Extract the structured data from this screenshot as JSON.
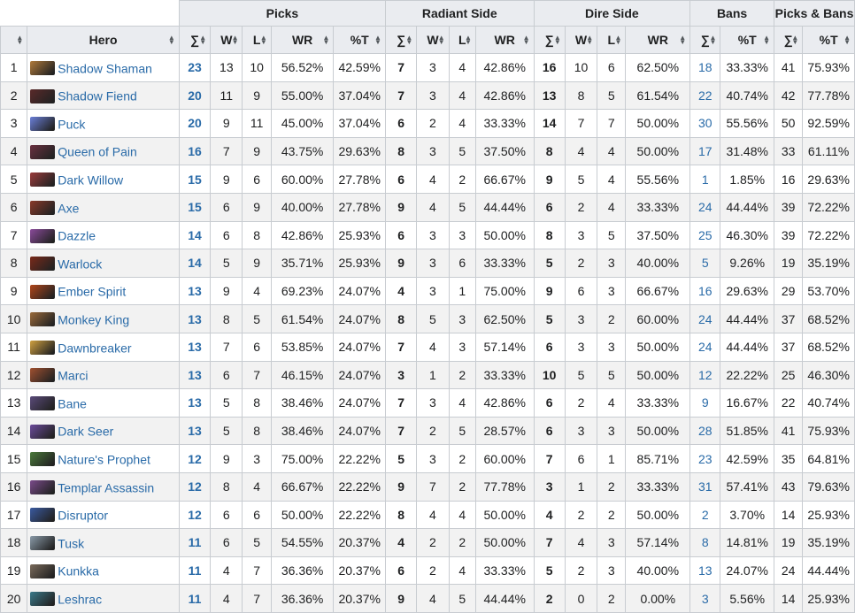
{
  "groups": {
    "picks": "Picks",
    "radiant": "Radiant Side",
    "dire": "Dire Side",
    "bans": "Bans",
    "picks_bans": "Picks & Bans"
  },
  "columns": {
    "rank": "",
    "hero": "Hero",
    "sum": "∑",
    "w": "W",
    "l": "L",
    "wr": "WR",
    "pt": "%T"
  },
  "sort_icon": "sort-arrows-icon",
  "rows": [
    {
      "n": "1",
      "hero": "Shadow Shaman",
      "icon": "#b07a3a",
      "p": "23",
      "pw": "13",
      "pl": "10",
      "pwr": "56.52%",
      "pt": "42.59%",
      "r": "7",
      "rw": "3",
      "rl": "4",
      "rwr": "42.86%",
      "d": "16",
      "dw": "10",
      "dl": "6",
      "dwr": "62.50%",
      "b": "18",
      "bt": "33.33%",
      "pb": "41",
      "pbt": "75.93%"
    },
    {
      "n": "2",
      "hero": "Shadow Fiend",
      "icon": "#5a2a2a",
      "p": "20",
      "pw": "11",
      "pl": "9",
      "pwr": "55.00%",
      "pt": "37.04%",
      "r": "7",
      "rw": "3",
      "rl": "4",
      "rwr": "42.86%",
      "d": "13",
      "dw": "8",
      "dl": "5",
      "dwr": "61.54%",
      "b": "22",
      "bt": "40.74%",
      "pb": "42",
      "pbt": "77.78%"
    },
    {
      "n": "3",
      "hero": "Puck",
      "icon": "#6a7fd8",
      "p": "20",
      "pw": "9",
      "pl": "11",
      "pwr": "45.00%",
      "pt": "37.04%",
      "r": "6",
      "rw": "2",
      "rl": "4",
      "rwr": "33.33%",
      "d": "14",
      "dw": "7",
      "dl": "7",
      "dwr": "50.00%",
      "b": "30",
      "bt": "55.56%",
      "pb": "50",
      "pbt": "92.59%"
    },
    {
      "n": "4",
      "hero": "Queen of Pain",
      "icon": "#6a3040",
      "p": "16",
      "pw": "7",
      "pl": "9",
      "pwr": "43.75%",
      "pt": "29.63%",
      "r": "8",
      "rw": "3",
      "rl": "5",
      "rwr": "37.50%",
      "d": "8",
      "dw": "4",
      "dl": "4",
      "dwr": "50.00%",
      "b": "17",
      "bt": "31.48%",
      "pb": "33",
      "pbt": "61.11%"
    },
    {
      "n": "5",
      "hero": "Dark Willow",
      "icon": "#9a3b3b",
      "p": "15",
      "pw": "9",
      "pl": "6",
      "pwr": "60.00%",
      "pt": "27.78%",
      "r": "6",
      "rw": "4",
      "rl": "2",
      "rwr": "66.67%",
      "d": "9",
      "dw": "5",
      "dl": "4",
      "dwr": "55.56%",
      "b": "1",
      "bt": "1.85%",
      "pb": "16",
      "pbt": "29.63%"
    },
    {
      "n": "6",
      "hero": "Axe",
      "icon": "#8a3a2a",
      "p": "15",
      "pw": "6",
      "pl": "9",
      "pwr": "40.00%",
      "pt": "27.78%",
      "r": "9",
      "rw": "4",
      "rl": "5",
      "rwr": "44.44%",
      "d": "6",
      "dw": "2",
      "dl": "4",
      "dwr": "33.33%",
      "b": "24",
      "bt": "44.44%",
      "pb": "39",
      "pbt": "72.22%"
    },
    {
      "n": "7",
      "hero": "Dazzle",
      "icon": "#8a4a9a",
      "p": "14",
      "pw": "6",
      "pl": "8",
      "pwr": "42.86%",
      "pt": "25.93%",
      "r": "6",
      "rw": "3",
      "rl": "3",
      "rwr": "50.00%",
      "d": "8",
      "dw": "3",
      "dl": "5",
      "dwr": "37.50%",
      "b": "25",
      "bt": "46.30%",
      "pb": "39",
      "pbt": "72.22%"
    },
    {
      "n": "8",
      "hero": "Warlock",
      "icon": "#7a2a1a",
      "p": "14",
      "pw": "5",
      "pl": "9",
      "pwr": "35.71%",
      "pt": "25.93%",
      "r": "9",
      "rw": "3",
      "rl": "6",
      "rwr": "33.33%",
      "d": "5",
      "dw": "2",
      "dl": "3",
      "dwr": "40.00%",
      "b": "5",
      "bt": "9.26%",
      "pb": "19",
      "pbt": "35.19%"
    },
    {
      "n": "9",
      "hero": "Ember Spirit",
      "icon": "#b0451a",
      "p": "13",
      "pw": "9",
      "pl": "4",
      "pwr": "69.23%",
      "pt": "24.07%",
      "r": "4",
      "rw": "3",
      "rl": "1",
      "rwr": "75.00%",
      "d": "9",
      "dw": "6",
      "dl": "3",
      "dwr": "66.67%",
      "b": "16",
      "bt": "29.63%",
      "pb": "29",
      "pbt": "53.70%"
    },
    {
      "n": "10",
      "hero": "Monkey King",
      "icon": "#9a6a3a",
      "p": "13",
      "pw": "8",
      "pl": "5",
      "pwr": "61.54%",
      "pt": "24.07%",
      "r": "8",
      "rw": "5",
      "rl": "3",
      "rwr": "62.50%",
      "d": "5",
      "dw": "3",
      "dl": "2",
      "dwr": "60.00%",
      "b": "24",
      "bt": "44.44%",
      "pb": "37",
      "pbt": "68.52%"
    },
    {
      "n": "11",
      "hero": "Dawnbreaker",
      "icon": "#d0a040",
      "p": "13",
      "pw": "7",
      "pl": "6",
      "pwr": "53.85%",
      "pt": "24.07%",
      "r": "7",
      "rw": "4",
      "rl": "3",
      "rwr": "57.14%",
      "d": "6",
      "dw": "3",
      "dl": "3",
      "dwr": "50.00%",
      "b": "24",
      "bt": "44.44%",
      "pb": "37",
      "pbt": "68.52%"
    },
    {
      "n": "12",
      "hero": "Marci",
      "icon": "#a05030",
      "p": "13",
      "pw": "6",
      "pl": "7",
      "pwr": "46.15%",
      "pt": "24.07%",
      "r": "3",
      "rw": "1",
      "rl": "2",
      "rwr": "33.33%",
      "d": "10",
      "dw": "5",
      "dl": "5",
      "dwr": "50.00%",
      "b": "12",
      "bt": "22.22%",
      "pb": "25",
      "pbt": "46.30%"
    },
    {
      "n": "13",
      "hero": "Bane",
      "icon": "#5a4a7a",
      "p": "13",
      "pw": "5",
      "pl": "8",
      "pwr": "38.46%",
      "pt": "24.07%",
      "r": "7",
      "rw": "3",
      "rl": "4",
      "rwr": "42.86%",
      "d": "6",
      "dw": "2",
      "dl": "4",
      "dwr": "33.33%",
      "b": "9",
      "bt": "16.67%",
      "pb": "22",
      "pbt": "40.74%"
    },
    {
      "n": "14",
      "hero": "Dark Seer",
      "icon": "#6a4a9a",
      "p": "13",
      "pw": "5",
      "pl": "8",
      "pwr": "38.46%",
      "pt": "24.07%",
      "r": "7",
      "rw": "2",
      "rl": "5",
      "rwr": "28.57%",
      "d": "6",
      "dw": "3",
      "dl": "3",
      "dwr": "50.00%",
      "b": "28",
      "bt": "51.85%",
      "pb": "41",
      "pbt": "75.93%"
    },
    {
      "n": "15",
      "hero": "Nature's Prophet",
      "icon": "#4a7a3a",
      "p": "12",
      "pw": "9",
      "pl": "3",
      "pwr": "75.00%",
      "pt": "22.22%",
      "r": "5",
      "rw": "3",
      "rl": "2",
      "rwr": "60.00%",
      "d": "7",
      "dw": "6",
      "dl": "1",
      "dwr": "85.71%",
      "b": "23",
      "bt": "42.59%",
      "pb": "35",
      "pbt": "64.81%"
    },
    {
      "n": "16",
      "hero": "Templar Assassin",
      "icon": "#7a4a8a",
      "p": "12",
      "pw": "8",
      "pl": "4",
      "pwr": "66.67%",
      "pt": "22.22%",
      "r": "9",
      "rw": "7",
      "rl": "2",
      "rwr": "77.78%",
      "d": "3",
      "dw": "1",
      "dl": "2",
      "dwr": "33.33%",
      "b": "31",
      "bt": "57.41%",
      "pb": "43",
      "pbt": "79.63%"
    },
    {
      "n": "17",
      "hero": "Disruptor",
      "icon": "#3a5aa0",
      "p": "12",
      "pw": "6",
      "pl": "6",
      "pwr": "50.00%",
      "pt": "22.22%",
      "r": "8",
      "rw": "4",
      "rl": "4",
      "rwr": "50.00%",
      "d": "4",
      "dw": "2",
      "dl": "2",
      "dwr": "50.00%",
      "b": "2",
      "bt": "3.70%",
      "pb": "14",
      "pbt": "25.93%"
    },
    {
      "n": "18",
      "hero": "Tusk",
      "icon": "#8a9aa8",
      "p": "11",
      "pw": "6",
      "pl": "5",
      "pwr": "54.55%",
      "pt": "20.37%",
      "r": "4",
      "rw": "2",
      "rl": "2",
      "rwr": "50.00%",
      "d": "7",
      "dw": "4",
      "dl": "3",
      "dwr": "57.14%",
      "b": "8",
      "bt": "14.81%",
      "pb": "19",
      "pbt": "35.19%"
    },
    {
      "n": "19",
      "hero": "Kunkka",
      "icon": "#7a6a5a",
      "p": "11",
      "pw": "4",
      "pl": "7",
      "pwr": "36.36%",
      "pt": "20.37%",
      "r": "6",
      "rw": "2",
      "rl": "4",
      "rwr": "33.33%",
      "d": "5",
      "dw": "2",
      "dl": "3",
      "dwr": "40.00%",
      "b": "13",
      "bt": "24.07%",
      "pb": "24",
      "pbt": "44.44%"
    },
    {
      "n": "20",
      "hero": "Leshrac",
      "icon": "#3a7a8a",
      "p": "11",
      "pw": "4",
      "pl": "7",
      "pwr": "36.36%",
      "pt": "20.37%",
      "r": "9",
      "rw": "4",
      "rl": "5",
      "rwr": "44.44%",
      "d": "2",
      "dw": "0",
      "dl": "2",
      "dwr": "0.00%",
      "b": "3",
      "bt": "5.56%",
      "pb": "14",
      "pbt": "25.93%"
    }
  ]
}
